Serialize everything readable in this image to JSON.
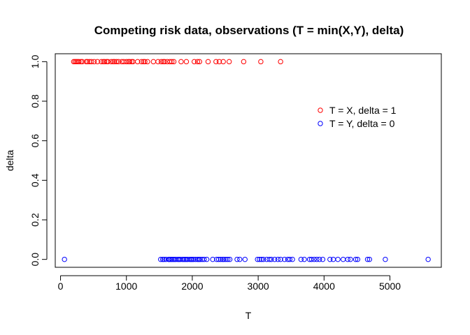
{
  "chart_data": {
    "type": "scatter",
    "title": "Competing risk data, observations (T = min(X,Y), delta)",
    "xlabel": "T",
    "ylabel": "delta",
    "xlim": [
      -80,
      5780
    ],
    "ylim": [
      -0.04,
      1.04
    ],
    "x_ticks": [
      0,
      1000,
      2000,
      3000,
      4000,
      5000
    ],
    "x_tick_labels": [
      "0",
      "1000",
      "2000",
      "3000",
      "4000",
      "5000"
    ],
    "y_ticks": [
      0.0,
      0.2,
      0.4,
      0.6,
      0.8,
      1.0
    ],
    "y_tick_labels": [
      "0.0",
      "0.2",
      "0.4",
      "0.6",
      "0.8",
      "1.0"
    ],
    "grid": false,
    "legend_position": "right",
    "series": [
      {
        "name": "T = X, delta = 1",
        "color": "#ff0000",
        "marker": "open-circle",
        "y": 1,
        "x": [
          200,
          220,
          240,
          260,
          280,
          310,
          330,
          390,
          410,
          440,
          470,
          510,
          560,
          620,
          650,
          670,
          700,
          720,
          770,
          800,
          820,
          850,
          880,
          930,
          960,
          1000,
          1030,
          1050,
          1080,
          1100,
          1170,
          1230,
          1260,
          1280,
          1320,
          1410,
          1480,
          1530,
          1560,
          1580,
          1620,
          1660,
          1690,
          1720,
          1830,
          1910,
          2030,
          2080,
          2110,
          2240,
          2360,
          2410,
          2470,
          2560,
          2780,
          3040,
          3340
        ]
      },
      {
        "name": "T = Y, delta = 0",
        "color": "#0000ff",
        "marker": "open-circle",
        "y": 0,
        "x": [
          60,
          1520,
          1550,
          1570,
          1600,
          1640,
          1650,
          1670,
          1690,
          1710,
          1730,
          1750,
          1780,
          1800,
          1820,
          1850,
          1870,
          1890,
          1910,
          1930,
          1960,
          1980,
          2000,
          2020,
          2050,
          2080,
          2100,
          2120,
          2150,
          2180,
          2220,
          2310,
          2370,
          2400,
          2430,
          2460,
          2480,
          2510,
          2540,
          2570,
          2680,
          2720,
          2800,
          2990,
          3020,
          3050,
          3080,
          3130,
          3170,
          3200,
          3250,
          3300,
          3340,
          3400,
          3450,
          3480,
          3520,
          3650,
          3700,
          3780,
          3810,
          3850,
          3890,
          3930,
          3980,
          4090,
          4140,
          4210,
          4290,
          4360,
          4400,
          4480,
          4510,
          4660,
          4690,
          4930,
          5580
        ]
      }
    ]
  }
}
